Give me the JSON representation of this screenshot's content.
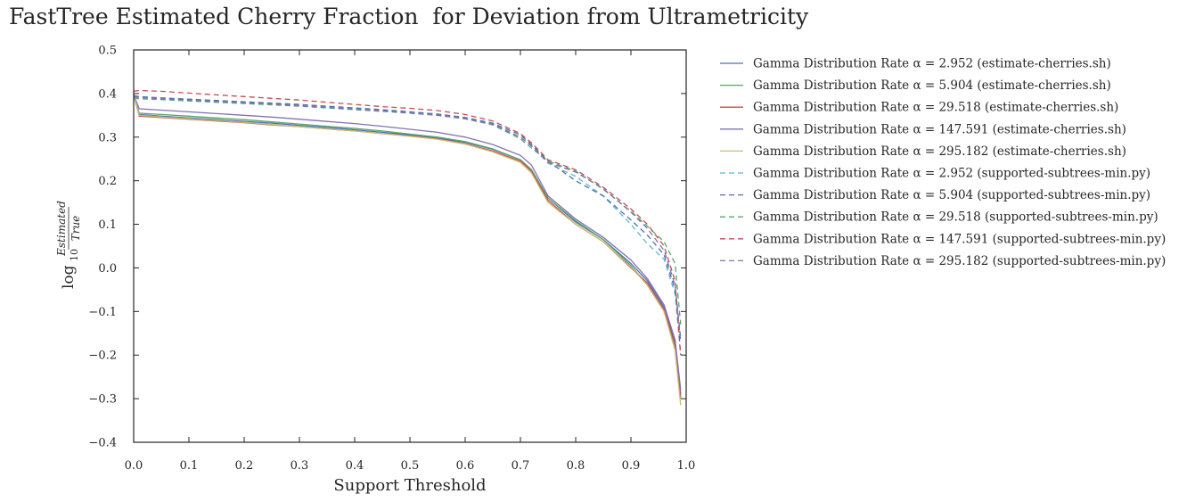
{
  "chart_data": {
    "type": "line",
    "title": "FastTree Estimated Cherry Fraction  for Deviation from Ultrametricity",
    "xlabel": "Support Threshold",
    "ylabel": {
      "prefix": "log",
      "subscript": "10",
      "numerator": "Estimated",
      "denominator": "True"
    },
    "xlim": [
      0.0,
      1.0
    ],
    "ylim": [
      -0.4,
      0.5
    ],
    "xticks": [
      "0.0",
      "0.1",
      "0.2",
      "0.3",
      "0.4",
      "0.5",
      "0.6",
      "0.7",
      "0.8",
      "0.9",
      "1.0"
    ],
    "yticks": [
      "0.5",
      "0.4",
      "0.3",
      "0.2",
      "0.1",
      "0.0",
      "−0.1",
      "−0.2",
      "−0.3",
      "−0.4"
    ],
    "grid": false,
    "legend_position": "outside right",
    "x": [
      0.0,
      0.01,
      0.05,
      0.1,
      0.15,
      0.2,
      0.25,
      0.3,
      0.35,
      0.4,
      0.45,
      0.5,
      0.55,
      0.6,
      0.65,
      0.7,
      0.72,
      0.75,
      0.8,
      0.85,
      0.9,
      0.93,
      0.96,
      0.98,
      0.99
    ],
    "series": [
      {
        "name": "Gamma Distribution Rate α = 2.952 (estimate-cherries.sh)",
        "style": "solid",
        "color": "#4c72b0",
        "values": [
          0.395,
          0.352,
          0.348,
          0.344,
          0.34,
          0.336,
          0.332,
          0.327,
          0.322,
          0.317,
          0.311,
          0.305,
          0.298,
          0.288,
          0.272,
          0.248,
          0.225,
          0.16,
          0.105,
          0.065,
          0.01,
          -0.03,
          -0.09,
          -0.17,
          -0.29
        ]
      },
      {
        "name": "Gamma Distribution Rate α = 5.904 (estimate-cherries.sh)",
        "style": "solid",
        "color": "#55a868",
        "values": [
          0.398,
          0.355,
          0.352,
          0.348,
          0.344,
          0.34,
          0.335,
          0.33,
          0.325,
          0.32,
          0.314,
          0.307,
          0.3,
          0.29,
          0.273,
          0.248,
          0.225,
          0.16,
          0.108,
          0.065,
          0.005,
          -0.04,
          -0.1,
          -0.18,
          -0.3
        ]
      },
      {
        "name": "Gamma Distribution Rate α = 29.518 (estimate-cherries.sh)",
        "style": "solid",
        "color": "#c44e52",
        "values": [
          0.4,
          0.348,
          0.345,
          0.341,
          0.337,
          0.333,
          0.328,
          0.324,
          0.319,
          0.314,
          0.308,
          0.303,
          0.296,
          0.285,
          0.268,
          0.245,
          0.222,
          0.155,
          0.1,
          0.06,
          0.0,
          -0.035,
          -0.095,
          -0.175,
          -0.295
        ]
      },
      {
        "name": "Gamma Distribution Rate α = 147.591 (estimate-cherries.sh)",
        "style": "solid",
        "color": "#8172b2",
        "values": [
          0.398,
          0.365,
          0.362,
          0.358,
          0.354,
          0.35,
          0.346,
          0.341,
          0.336,
          0.331,
          0.325,
          0.318,
          0.311,
          0.3,
          0.283,
          0.258,
          0.236,
          0.165,
          0.112,
          0.07,
          0.018,
          -0.025,
          -0.085,
          -0.165,
          -0.28
        ]
      },
      {
        "name": "Gamma Distribution Rate α = 295.182 (estimate-cherries.sh)",
        "style": "solid",
        "color": "#ccb974",
        "values": [
          0.4,
          0.35,
          0.346,
          0.342,
          0.338,
          0.334,
          0.329,
          0.324,
          0.319,
          0.314,
          0.308,
          0.302,
          0.295,
          0.284,
          0.266,
          0.242,
          0.218,
          0.15,
          0.1,
          0.06,
          0.002,
          -0.04,
          -0.1,
          -0.19,
          -0.315
        ]
      },
      {
        "name": "Gamma Distribution Rate α = 2.952 (supported-subtrees-min.py)",
        "style": "dashed",
        "color": "#64b5cd",
        "values": [
          0.395,
          0.392,
          0.389,
          0.386,
          0.383,
          0.38,
          0.377,
          0.374,
          0.37,
          0.366,
          0.362,
          0.357,
          0.352,
          0.343,
          0.33,
          0.3,
          0.28,
          0.24,
          0.21,
          0.165,
          0.1,
          0.055,
          0.02,
          -0.06,
          -0.2
        ]
      },
      {
        "name": "Gamma Distribution Rate α = 5.904 (supported-subtrees-min.py)",
        "style": "dashed",
        "color": "#4c72b0",
        "values": [
          0.395,
          0.393,
          0.39,
          0.387,
          0.384,
          0.381,
          0.378,
          0.375,
          0.371,
          0.367,
          0.363,
          0.358,
          0.353,
          0.345,
          0.332,
          0.305,
          0.283,
          0.245,
          0.2,
          0.165,
          0.11,
          0.075,
          0.03,
          -0.05,
          -0.17
        ]
      },
      {
        "name": "Gamma Distribution Rate α = 29.518 (supported-subtrees-min.py)",
        "style": "dashed",
        "color": "#55a868",
        "values": [
          0.39,
          0.388,
          0.386,
          0.383,
          0.38,
          0.377,
          0.374,
          0.371,
          0.367,
          0.363,
          0.359,
          0.355,
          0.35,
          0.342,
          0.328,
          0.296,
          0.275,
          0.245,
          0.222,
          0.18,
          0.13,
          0.095,
          0.06,
          0.01,
          -0.13
        ]
      },
      {
        "name": "Gamma Distribution Rate α = 147.591 (supported-subtrees-min.py)",
        "style": "dashed",
        "color": "#c44e52",
        "values": [
          0.405,
          0.407,
          0.405,
          0.401,
          0.397,
          0.393,
          0.389,
          0.385,
          0.38,
          0.375,
          0.37,
          0.366,
          0.361,
          0.352,
          0.337,
          0.308,
          0.287,
          0.248,
          0.225,
          0.185,
          0.135,
          0.1,
          0.05,
          -0.03,
          -0.2
        ]
      },
      {
        "name": "Gamma Distribution Rate α = 295.182 (supported-subtrees-min.py)",
        "style": "dashed",
        "color": "#8172b2",
        "values": [
          0.393,
          0.391,
          0.388,
          0.385,
          0.382,
          0.379,
          0.376,
          0.372,
          0.368,
          0.364,
          0.36,
          0.355,
          0.35,
          0.342,
          0.329,
          0.3,
          0.28,
          0.242,
          0.22,
          0.182,
          0.128,
          0.09,
          0.04,
          -0.04,
          -0.16
        ]
      }
    ]
  }
}
